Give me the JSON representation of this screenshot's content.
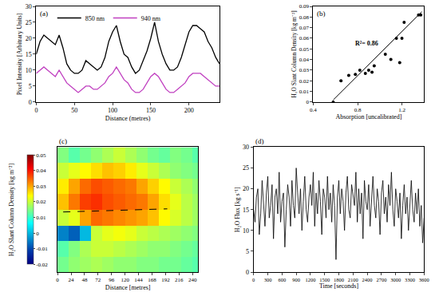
{
  "chart_data": [
    {
      "type": "line",
      "title": "(a)",
      "x": [
        0,
        5,
        10,
        15,
        20,
        25,
        30,
        35,
        40,
        45,
        50,
        55,
        60,
        65,
        70,
        75,
        80,
        85,
        90,
        95,
        100,
        105,
        110,
        115,
        120,
        125,
        130,
        135,
        140,
        145,
        150,
        155,
        160,
        165,
        170,
        175,
        180,
        185,
        190,
        195,
        200,
        205,
        210,
        215,
        220,
        225,
        230,
        235,
        240
      ],
      "series": [
        {
          "name": "850 nm",
          "color": "#000000",
          "values": [
            15,
            19,
            21,
            20,
            19,
            18,
            21,
            17,
            12,
            10,
            9,
            9,
            10,
            13,
            12,
            11,
            10,
            11,
            14,
            19,
            22,
            24,
            19,
            15,
            14,
            11,
            9,
            10,
            13,
            16,
            20,
            25,
            19,
            15,
            12,
            10,
            10,
            11,
            14,
            18,
            22,
            24,
            24,
            23,
            22,
            19,
            17,
            14,
            12
          ]
        },
        {
          "name": "940 nm",
          "color": "#c040c0",
          "values": [
            9,
            10,
            11,
            10,
            9,
            8,
            10,
            8,
            6,
            5,
            4,
            3,
            4,
            5,
            5,
            4,
            4,
            5,
            6,
            8,
            9,
            11,
            9,
            7,
            6,
            4,
            3,
            3,
            4,
            6,
            8,
            9,
            8,
            6,
            4,
            3,
            3,
            4,
            5,
            6,
            8,
            9,
            9,
            9,
            8,
            7,
            6,
            5,
            5
          ]
        }
      ],
      "xlabel": "Distance (metres)",
      "ylabel": "Pixel Intensity [Arbitrary Units]",
      "xlim": [
        0,
        240
      ],
      "xticks": [
        0,
        50,
        100,
        150,
        200
      ],
      "ylim": [
        0,
        30
      ],
      "yticks": [
        0,
        5,
        10,
        15,
        20,
        25,
        30
      ],
      "legend": "top-left",
      "grid": false
    },
    {
      "type": "scatter",
      "title": "(b)",
      "x": [
        0.58,
        0.65,
        0.72,
        0.78,
        0.82,
        0.87,
        0.9,
        0.93,
        0.95,
        1.05,
        1.1,
        1.15,
        1.18,
        1.2,
        1.22,
        1.35,
        1.37
      ],
      "values": [
        0.0,
        0.02,
        0.025,
        0.026,
        0.03,
        0.027,
        0.03,
        0.028,
        0.034,
        0.045,
        0.04,
        0.06,
        0.037,
        0.06,
        0.075,
        0.082,
        0.082
      ],
      "color": "#000000",
      "marker": "circle",
      "fit": {
        "x": [
          0.58,
          1.38
        ],
        "values": [
          0.002,
          0.085
        ]
      },
      "annotation": "R²= 0.86",
      "xlabel": "Absorption [uncalibrated]",
      "ylabel": "H₂O Slant Column Density [kg m⁻²]",
      "xlim": [
        0.4,
        1.4
      ],
      "xticks": [
        0.4,
        0.8,
        1.2
      ],
      "ylim": [
        0,
        0.09
      ],
      "yticks": [
        0,
        0.01,
        0.02,
        0.03,
        0.04,
        0.05,
        0.06,
        0.07,
        0.08,
        0.09
      ],
      "grid": false
    },
    {
      "type": "heatmap",
      "title": "(c)",
      "x": [
        10,
        30,
        50,
        70,
        90,
        110,
        130,
        150,
        170,
        190,
        210,
        230,
        250
      ],
      "y": [
        0,
        1,
        2,
        3,
        4,
        5,
        6,
        7
      ],
      "z": [
        [
          0.014,
          0.016,
          0.017,
          0.018,
          0.017,
          0.016,
          0.016,
          0.015,
          0.015,
          0.014,
          0.014,
          0.013,
          0.012
        ],
        [
          0.012,
          0.015,
          0.018,
          0.02,
          0.02,
          0.019,
          0.018,
          0.017,
          0.016,
          0.016,
          0.015,
          0.014,
          0.013
        ],
        [
          -0.005,
          -0.008,
          0.0,
          0.02,
          0.022,
          0.023,
          0.022,
          0.02,
          0.019,
          0.018,
          0.017,
          0.016,
          0.015
        ],
        [
          0.02,
          0.022,
          0.03,
          0.034,
          0.033,
          0.032,
          0.031,
          0.03,
          0.028,
          0.024,
          0.021,
          0.019,
          0.017
        ],
        [
          0.028,
          0.033,
          0.037,
          0.038,
          0.036,
          0.035,
          0.034,
          0.033,
          0.03,
          0.026,
          0.022,
          0.019,
          0.017
        ],
        [
          0.025,
          0.03,
          0.034,
          0.036,
          0.035,
          0.034,
          0.033,
          0.03,
          0.027,
          0.024,
          0.02,
          0.018,
          0.016
        ],
        [
          0.02,
          0.022,
          0.024,
          0.026,
          0.028,
          0.027,
          0.025,
          0.022,
          0.02,
          0.018,
          0.016,
          0.015,
          0.014
        ],
        [
          0.015,
          0.012,
          0.014,
          0.016,
          0.018,
          0.02,
          0.018,
          0.016,
          0.014,
          0.013,
          0.015,
          0.014,
          0.012
        ]
      ],
      "xlabel": "Distance [metres]",
      "colorbar_title": "H₂O Slant Column Density [kg m⁻²]",
      "xlim": [
        0,
        250
      ],
      "xticks": [
        0,
        24,
        48,
        72,
        96,
        120,
        144,
        168,
        192,
        216,
        240
      ],
      "ylim": [
        -0.5,
        7.5
      ],
      "tick_labels": "x",
      "zlim": [
        -0.02,
        0.05
      ],
      "zticks": [
        -0.02,
        -0.01,
        0,
        0.01,
        0.02,
        0.03,
        0.04,
        0.05
      ],
      "dashed_line": {
        "x": [
          10,
          195
        ],
        "y": [
          3.35,
          3.55
        ],
        "color": "#000000",
        "line_style": "dashed"
      },
      "grid": false
    },
    {
      "type": "line",
      "title": "(d)",
      "x": [
        0,
        30,
        60,
        90,
        120,
        150,
        180,
        210,
        240,
        270,
        300,
        330,
        360,
        390,
        420,
        450,
        480,
        510,
        540,
        570,
        600,
        630,
        660,
        690,
        720,
        750,
        780,
        810,
        840,
        870,
        900,
        930,
        960,
        990,
        1020,
        1050,
        1080,
        1110,
        1140,
        1170,
        1200,
        1230,
        1260,
        1290,
        1320,
        1350,
        1380,
        1410,
        1440,
        1470,
        1500,
        1530,
        1560,
        1590,
        1620,
        1650,
        1680,
        1710,
        1740,
        1770,
        1800,
        1830,
        1860,
        1890,
        1920,
        1950,
        1980,
        2010,
        2040,
        2070,
        2100,
        2130,
        2160,
        2190,
        2220,
        2250,
        2280,
        2310,
        2340,
        2370,
        2400,
        2430,
        2460,
        2490,
        2520,
        2550,
        2580,
        2610,
        2640,
        2670,
        2700,
        2730,
        2760,
        2790,
        2820,
        2850,
        2880,
        2910,
        2940,
        2970,
        3000,
        3030,
        3060,
        3090,
        3120,
        3150,
        3180,
        3210,
        3240,
        3270,
        3300,
        3330,
        3360,
        3390,
        3420,
        3450,
        3480,
        3510,
        3540,
        3570,
        3600
      ],
      "values": [
        15,
        12,
        18,
        20,
        9,
        14,
        22,
        17,
        11,
        19,
        23,
        13,
        16,
        21,
        8,
        18,
        20,
        14,
        24,
        12,
        17,
        19,
        6,
        15,
        21,
        18,
        11,
        22,
        16,
        13,
        25,
        19,
        14,
        20,
        10,
        17,
        23,
        15,
        12,
        18,
        21,
        16,
        24,
        11,
        19,
        14,
        22,
        17,
        9,
        20,
        18,
        13,
        23,
        15,
        19,
        12,
        21,
        16,
        3,
        18,
        22,
        14,
        20,
        17,
        10,
        19,
        23,
        15,
        13,
        21,
        18,
        16,
        24,
        12,
        20,
        14,
        19,
        8,
        22,
        17,
        15,
        21,
        11,
        18,
        23,
        16,
        13,
        20,
        17,
        9,
        19,
        22,
        14,
        18,
        12,
        21,
        16,
        24,
        15,
        11,
        20,
        17,
        13,
        19,
        8,
        16,
        21,
        14,
        18,
        10,
        17,
        22,
        15,
        12,
        19,
        14,
        20,
        11,
        16,
        7,
        13
      ],
      "color": "#000000",
      "xlabel": "Time [seconds]",
      "ylabel": "H₂O Flux [kg s⁻¹]",
      "xlim": [
        0,
        3600
      ],
      "xticks": [
        0,
        300,
        600,
        900,
        1200,
        1500,
        1800,
        2100,
        2400,
        2700,
        3000,
        3300,
        3600
      ],
      "ylim": [
        0,
        30
      ],
      "yticks": [
        0,
        5,
        10,
        15,
        20,
        25,
        30
      ],
      "grid": false
    }
  ]
}
